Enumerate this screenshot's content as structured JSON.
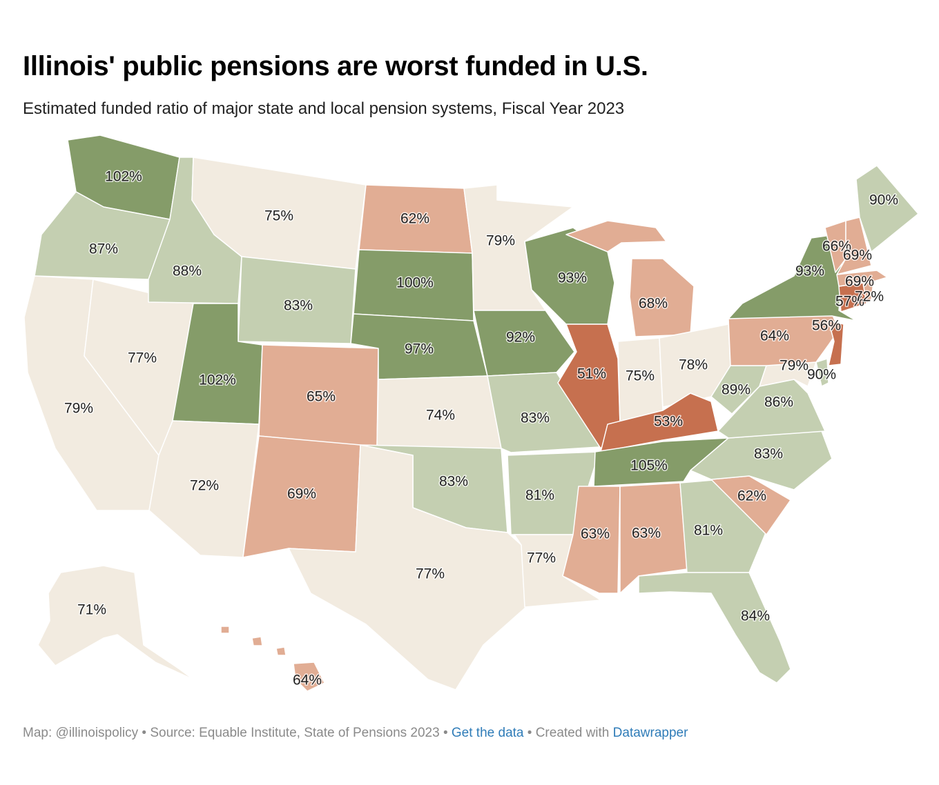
{
  "title": "Illinois' public pensions are worst funded in U.S.",
  "subtitle": "Estimated funded ratio of major state and local pension systems, Fiscal Year 2023",
  "footer": {
    "map_credit": "Map: @illinoispolicy",
    "sep1": " • ",
    "source": "Source: Equable Institute, State of Pensions 2023",
    "sep2": " • ",
    "get_data": "Get the data",
    "sep3": " • ",
    "created_with": "Created with ",
    "datawrapper": "Datawrapper"
  },
  "colors": {
    "very_low": "#c6704f",
    "low": "#e1ad94",
    "mid": "#f2ebe0",
    "high": "#c4cfb1",
    "very_high": "#859c69"
  },
  "states": [
    {
      "id": "WA",
      "label": "102%",
      "value": 102,
      "color": "#859c69"
    },
    {
      "id": "OR",
      "label": "87%",
      "value": 87,
      "color": "#c4cfb1"
    },
    {
      "id": "CA",
      "label": "79%",
      "value": 79,
      "color": "#f2ebe0"
    },
    {
      "id": "NV",
      "label": "77%",
      "value": 77,
      "color": "#f2ebe0"
    },
    {
      "id": "ID",
      "label": "88%",
      "value": 88,
      "color": "#c4cfb1"
    },
    {
      "id": "MT",
      "label": "75%",
      "value": 75,
      "color": "#f2ebe0"
    },
    {
      "id": "WY",
      "label": "83%",
      "value": 83,
      "color": "#c4cfb1"
    },
    {
      "id": "UT",
      "label": "102%",
      "value": 102,
      "color": "#859c69"
    },
    {
      "id": "AZ",
      "label": "72%",
      "value": 72,
      "color": "#f2ebe0"
    },
    {
      "id": "CO",
      "label": "65%",
      "value": 65,
      "color": "#e1ad94"
    },
    {
      "id": "NM",
      "label": "69%",
      "value": 69,
      "color": "#e1ad94"
    },
    {
      "id": "ND",
      "label": "62%",
      "value": 62,
      "color": "#e1ad94"
    },
    {
      "id": "SD",
      "label": "100%",
      "value": 100,
      "color": "#859c69"
    },
    {
      "id": "NE",
      "label": "97%",
      "value": 97,
      "color": "#859c69"
    },
    {
      "id": "KS",
      "label": "74%",
      "value": 74,
      "color": "#f2ebe0"
    },
    {
      "id": "OK",
      "label": "83%",
      "value": 83,
      "color": "#c4cfb1"
    },
    {
      "id": "TX",
      "label": "77%",
      "value": 77,
      "color": "#f2ebe0"
    },
    {
      "id": "MN",
      "label": "79%",
      "value": 79,
      "color": "#f2ebe0"
    },
    {
      "id": "IA",
      "label": "92%",
      "value": 92,
      "color": "#859c69"
    },
    {
      "id": "MO",
      "label": "83%",
      "value": 83,
      "color": "#c4cfb1"
    },
    {
      "id": "AR",
      "label": "81%",
      "value": 81,
      "color": "#c4cfb1"
    },
    {
      "id": "LA",
      "label": "77%",
      "value": 77,
      "color": "#f2ebe0"
    },
    {
      "id": "WI",
      "label": "93%",
      "value": 93,
      "color": "#859c69"
    },
    {
      "id": "IL",
      "label": "51%",
      "value": 51,
      "color": "#c6704f"
    },
    {
      "id": "MI",
      "label": "68%",
      "value": 68,
      "color": "#e1ad94"
    },
    {
      "id": "IN",
      "label": "75%",
      "value": 75,
      "color": "#f2ebe0"
    },
    {
      "id": "OH",
      "label": "78%",
      "value": 78,
      "color": "#f2ebe0"
    },
    {
      "id": "KY",
      "label": "53%",
      "value": 53,
      "color": "#c6704f"
    },
    {
      "id": "TN",
      "label": "105%",
      "value": 105,
      "color": "#859c69"
    },
    {
      "id": "MS",
      "label": "63%",
      "value": 63,
      "color": "#e1ad94"
    },
    {
      "id": "AL",
      "label": "63%",
      "value": 63,
      "color": "#e1ad94"
    },
    {
      "id": "GA",
      "label": "81%",
      "value": 81,
      "color": "#c4cfb1"
    },
    {
      "id": "FL",
      "label": "84%",
      "value": 84,
      "color": "#c4cfb1"
    },
    {
      "id": "SC",
      "label": "62%",
      "value": 62,
      "color": "#e1ad94"
    },
    {
      "id": "NC",
      "label": "83%",
      "value": 83,
      "color": "#c4cfb1"
    },
    {
      "id": "VA",
      "label": "86%",
      "value": 86,
      "color": "#c4cfb1"
    },
    {
      "id": "WV",
      "label": "89%",
      "value": 89,
      "color": "#c4cfb1"
    },
    {
      "id": "MD",
      "label": "79%",
      "value": 79,
      "color": "#f2ebe0"
    },
    {
      "id": "DE",
      "label": "90%",
      "value": 90,
      "color": "#c4cfb1"
    },
    {
      "id": "PA",
      "label": "64%",
      "value": 64,
      "color": "#e1ad94"
    },
    {
      "id": "NJ",
      "label": "56%",
      "value": 56,
      "color": "#c6704f"
    },
    {
      "id": "NY",
      "label": "93%",
      "value": 93,
      "color": "#859c69"
    },
    {
      "id": "CT",
      "label": "57%",
      "value": 57,
      "color": "#c6704f"
    },
    {
      "id": "RI",
      "label": "72%",
      "value": 72,
      "color": "#e1ad94"
    },
    {
      "id": "MA",
      "label": "69%",
      "value": 69,
      "color": "#e1ad94"
    },
    {
      "id": "VT",
      "label": "66%",
      "value": 66,
      "color": "#e1ad94"
    },
    {
      "id": "NH",
      "label": "69%",
      "value": 69,
      "color": "#e1ad94"
    },
    {
      "id": "ME",
      "label": "90%",
      "value": 90,
      "color": "#c4cfb1"
    },
    {
      "id": "AK",
      "label": "71%",
      "value": 71,
      "color": "#f2ebe0"
    },
    {
      "id": "HI",
      "label": "64%",
      "value": 64,
      "color": "#e1ad94"
    }
  ]
}
